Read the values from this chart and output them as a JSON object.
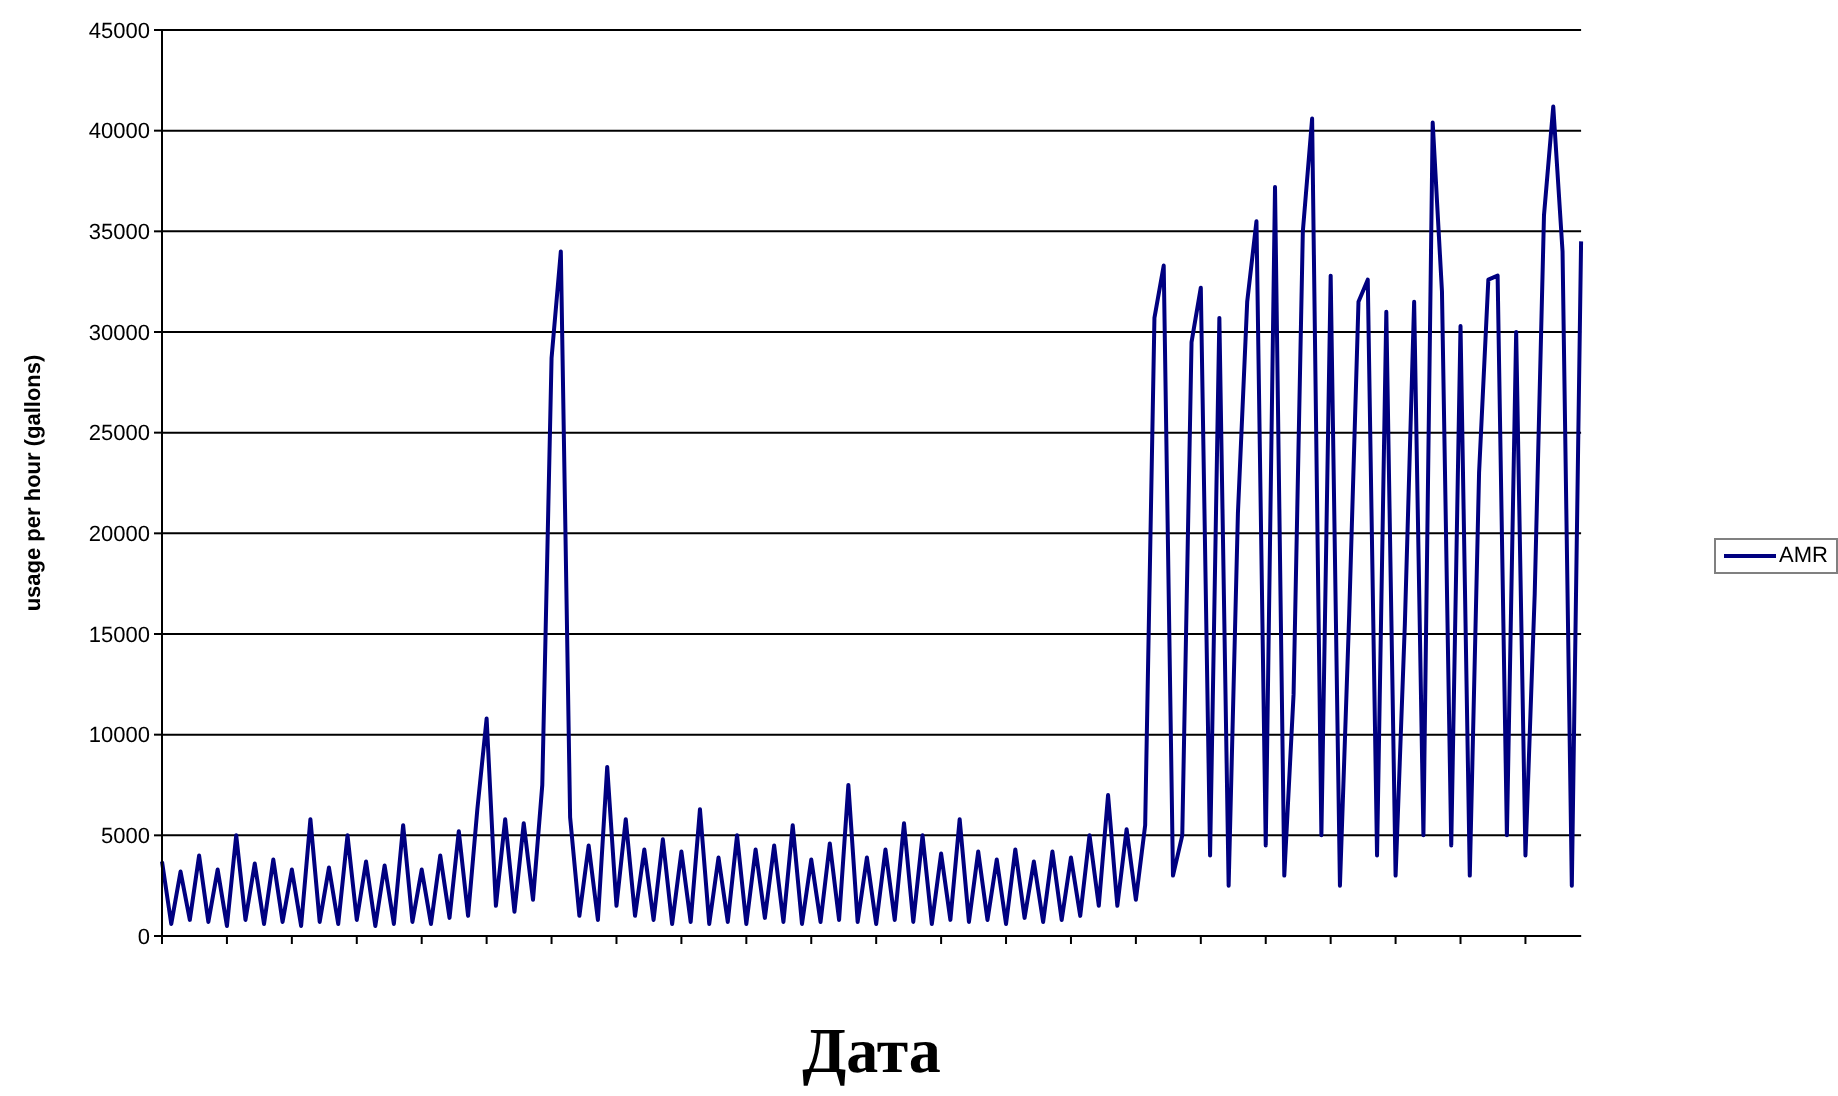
{
  "chart_data": {
    "type": "line",
    "xlabel": "Дата",
    "ylabel": "usage per hour (gallons)",
    "categories": [
      null,
      null,
      null,
      null,
      null,
      null,
      null,
      null,
      null,
      null,
      null,
      null,
      null,
      null,
      null,
      null,
      null,
      null,
      null,
      null,
      null,
      null,
      null,
      null,
      null,
      null,
      null,
      null,
      null,
      null,
      null,
      null,
      null,
      null,
      null,
      null,
      null,
      null,
      null,
      null,
      null,
      null,
      null,
      null,
      null,
      null,
      null,
      null,
      null,
      null,
      null,
      null,
      null,
      null,
      null,
      null,
      null,
      null,
      null,
      null,
      null,
      null,
      null,
      null,
      null,
      null,
      null,
      null,
      null,
      null,
      null,
      null,
      null,
      null,
      null,
      null,
      null,
      null,
      null,
      null,
      null,
      null,
      null,
      null,
      null,
      null,
      null,
      null,
      null,
      null,
      null,
      null,
      null,
      null,
      null,
      null,
      null,
      null,
      null,
      null,
      null,
      null,
      null,
      null,
      null,
      null,
      null,
      null,
      null,
      null,
      null,
      null,
      null,
      null,
      null,
      null,
      null,
      null,
      null,
      null,
      null,
      null,
      null,
      null,
      null,
      null,
      null,
      null,
      null,
      null,
      null,
      null,
      null,
      null,
      null,
      null,
      null,
      null,
      null,
      null,
      null,
      null,
      null,
      null,
      null,
      null,
      null,
      null,
      null,
      null,
      null,
      null,
      null,
      null
    ],
    "series": [
      {
        "name": "AMR",
        "color": "#000080",
        "values": [
          3700,
          600,
          3200,
          800,
          4000,
          700,
          3300,
          500,
          5000,
          800,
          3600,
          600,
          3800,
          700,
          3300,
          500,
          5800,
          700,
          3400,
          600,
          5000,
          800,
          3700,
          500,
          3500,
          600,
          5500,
          700,
          3300,
          600,
          4000,
          900,
          5200,
          1000,
          6300,
          10800,
          1500,
          5800,
          1200,
          5600,
          1800,
          7500,
          28700,
          34000,
          5900,
          1000,
          4500,
          800,
          8400,
          1500,
          5800,
          1000,
          4300,
          800,
          4800,
          600,
          4200,
          700,
          6300,
          600,
          3900,
          700,
          5000,
          600,
          4300,
          900,
          4500,
          700,
          5500,
          600,
          3800,
          700,
          4600,
          800,
          7500,
          700,
          3900,
          600,
          4300,
          800,
          5600,
          700,
          5000,
          600,
          4100,
          800,
          5800,
          700,
          4200,
          800,
          3800,
          600,
          4300,
          900,
          3700,
          700,
          4200,
          800,
          3900,
          1000,
          5000,
          1500,
          7000,
          1500,
          5300,
          1800,
          5500,
          30700,
          33300,
          3000,
          5000,
          29500,
          32200,
          4000,
          30700,
          2500,
          21000,
          31500,
          35500,
          4500,
          37200,
          3000,
          12000,
          35000,
          40600,
          5000,
          32800,
          2500,
          16000,
          31500,
          32600,
          4000,
          31000,
          3000,
          15500,
          31500,
          5000,
          40400,
          32000,
          4500,
          30300,
          3000,
          23000,
          32600,
          32800,
          5000,
          30000,
          4000,
          17000,
          35800,
          41200,
          34000,
          2500,
          34500
        ]
      }
    ],
    "ylim": [
      0,
      45000
    ],
    "yticks": [
      0,
      5000,
      10000,
      15000,
      20000,
      25000,
      30000,
      35000,
      40000,
      45000
    ],
    "grid": "y",
    "legend": "right",
    "marker": "none",
    "line_style": "solid"
  }
}
